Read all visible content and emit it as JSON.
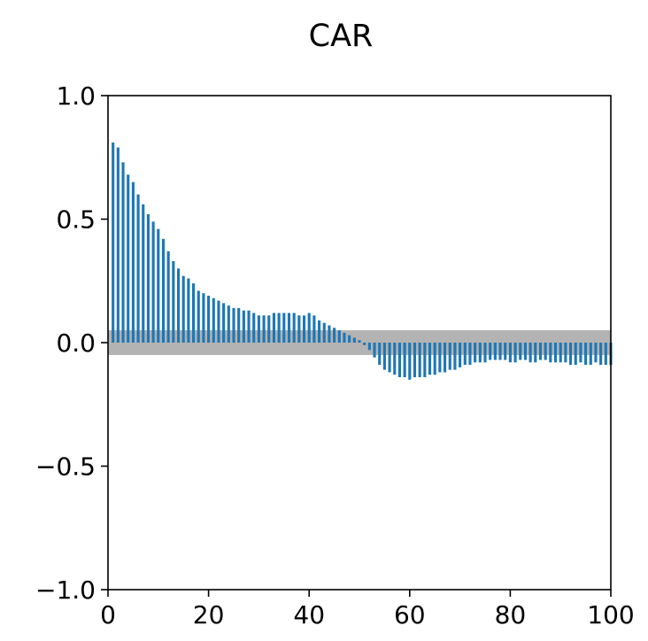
{
  "chart_data": {
    "type": "bar",
    "title": "CAR",
    "xlabel": "",
    "ylabel": "",
    "xlim": [
      0,
      100
    ],
    "ylim": [
      -1.0,
      1.0
    ],
    "xticks": [
      "0",
      "20",
      "40",
      "60",
      "80",
      "100"
    ],
    "yticks": [
      "1.0",
      "0.5",
      "0.0",
      "−0.5",
      "−1.0"
    ],
    "grid": false,
    "legend": "none",
    "confidence_band": [
      -0.05,
      0.05
    ],
    "bar_color": "#1f77b4",
    "band_color": "#b3b3b3",
    "lags": [
      1,
      2,
      3,
      4,
      5,
      6,
      7,
      8,
      9,
      10,
      11,
      12,
      13,
      14,
      15,
      16,
      17,
      18,
      19,
      20,
      21,
      22,
      23,
      24,
      25,
      26,
      27,
      28,
      29,
      30,
      31,
      32,
      33,
      34,
      35,
      36,
      37,
      38,
      39,
      40,
      41,
      42,
      43,
      44,
      45,
      46,
      47,
      48,
      49,
      50,
      51,
      52,
      53,
      54,
      55,
      56,
      57,
      58,
      59,
      60,
      61,
      62,
      63,
      64,
      65,
      66,
      67,
      68,
      69,
      70,
      71,
      72,
      73,
      74,
      75,
      76,
      77,
      78,
      79,
      80,
      81,
      82,
      83,
      84,
      85,
      86,
      87,
      88,
      89,
      90,
      91,
      92,
      93,
      94,
      95,
      96,
      97,
      98,
      99,
      100
    ],
    "values": [
      0.81,
      0.79,
      0.73,
      0.68,
      0.65,
      0.6,
      0.56,
      0.52,
      0.49,
      0.46,
      0.42,
      0.37,
      0.33,
      0.3,
      0.27,
      0.26,
      0.24,
      0.21,
      0.2,
      0.19,
      0.18,
      0.17,
      0.16,
      0.15,
      0.14,
      0.14,
      0.13,
      0.13,
      0.12,
      0.11,
      0.11,
      0.11,
      0.12,
      0.12,
      0.12,
      0.12,
      0.12,
      0.11,
      0.11,
      0.12,
      0.11,
      0.09,
      0.08,
      0.07,
      0.06,
      0.05,
      0.04,
      0.03,
      0.02,
      0.01,
      -0.01,
      -0.03,
      -0.06,
      -0.09,
      -0.11,
      -0.12,
      -0.13,
      -0.14,
      -0.14,
      -0.15,
      -0.14,
      -0.14,
      -0.14,
      -0.13,
      -0.13,
      -0.12,
      -0.12,
      -0.11,
      -0.11,
      -0.1,
      -0.09,
      -0.09,
      -0.08,
      -0.08,
      -0.08,
      -0.07,
      -0.07,
      -0.07,
      -0.07,
      -0.08,
      -0.08,
      -0.07,
      -0.07,
      -0.08,
      -0.08,
      -0.07,
      -0.07,
      -0.08,
      -0.08,
      -0.08,
      -0.08,
      -0.09,
      -0.09,
      -0.08,
      -0.09,
      -0.09,
      -0.08,
      -0.09,
      -0.09,
      -0.09
    ]
  }
}
